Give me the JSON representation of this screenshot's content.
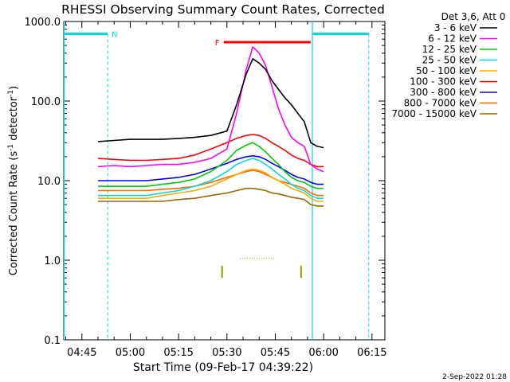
{
  "chart_data": {
    "type": "line",
    "title": "RHESSI Observing Summary Count Rates, Corrected",
    "xlabel": "Start Time (09-Feb-17 04:39:22)",
    "ylabel": "Corrected Count Rate (s⁻¹ detector⁻¹)",
    "ylabel_main": "Corrected Count Rate (s",
    "ylabel_sup1": "-1",
    "ylabel_mid": " detector",
    "ylabel_sup2": "-1",
    "ylabel_end": ")",
    "y_scale": "log",
    "ylim": [
      0.1,
      1000.0
    ],
    "xlim": [
      "04:39:22",
      "06:19:00"
    ],
    "y_ticks": [
      {
        "value": 0.1,
        "label": "0.1"
      },
      {
        "value": 1.0,
        "label": "1.0"
      },
      {
        "value": 10.0,
        "label": "10.0"
      },
      {
        "value": 100.0,
        "label": "100.0"
      },
      {
        "value": 1000.0,
        "label": "1000.0"
      }
    ],
    "x_ticks": [
      {
        "value": "04:45",
        "label": "04:45"
      },
      {
        "value": "05:00",
        "label": "05:00"
      },
      {
        "value": "05:15",
        "label": "05:15"
      },
      {
        "value": "05:30",
        "label": "05:30"
      },
      {
        "value": "05:45",
        "label": "05:45"
      },
      {
        "value": "06:00",
        "label": "06:00"
      },
      {
        "value": "06:15",
        "label": "06:15"
      }
    ],
    "legend_title": "Det 3,6, Att 0",
    "legend_position": "top-right",
    "series": [
      {
        "name": "3 - 6 keV",
        "color": "#000000",
        "points": [
          [
            "04:50",
            31
          ],
          [
            "04:55",
            32
          ],
          [
            "05:00",
            33
          ],
          [
            "05:05",
            33
          ],
          [
            "05:10",
            33
          ],
          [
            "05:15",
            34
          ],
          [
            "05:20",
            35
          ],
          [
            "05:25",
            37
          ],
          [
            "05:30",
            42
          ],
          [
            "05:33",
            90
          ],
          [
            "05:36",
            220
          ],
          [
            "05:38",
            340
          ],
          [
            "05:40",
            300
          ],
          [
            "05:42",
            250
          ],
          [
            "05:44",
            180
          ],
          [
            "05:46",
            140
          ],
          [
            "05:48",
            110
          ],
          [
            "05:50",
            90
          ],
          [
            "05:52",
            70
          ],
          [
            "05:54",
            55
          ],
          [
            "05:56",
            30
          ],
          [
            "05:58",
            27
          ],
          [
            "06:00",
            26
          ]
        ]
      },
      {
        "name": "6 - 12 keV",
        "color": "#ff00ff",
        "points": [
          [
            "04:50",
            15
          ],
          [
            "04:55",
            15.5
          ],
          [
            "05:00",
            15
          ],
          [
            "05:05",
            15.5
          ],
          [
            "05:10",
            16
          ],
          [
            "05:15",
            16
          ],
          [
            "05:20",
            17
          ],
          [
            "05:25",
            19
          ],
          [
            "05:30",
            25
          ],
          [
            "05:33",
            70
          ],
          [
            "05:36",
            250
          ],
          [
            "05:38",
            480
          ],
          [
            "05:40",
            400
          ],
          [
            "05:42",
            280
          ],
          [
            "05:44",
            150
          ],
          [
            "05:46",
            80
          ],
          [
            "05:48",
            50
          ],
          [
            "05:50",
            35
          ],
          [
            "05:52",
            30
          ],
          [
            "05:54",
            27
          ],
          [
            "05:56",
            16
          ],
          [
            "05:58",
            14
          ],
          [
            "06:00",
            13
          ]
        ]
      },
      {
        "name": "12 - 25 keV",
        "color": "#00cc00",
        "points": [
          [
            "04:50",
            8.5
          ],
          [
            "04:55",
            8.5
          ],
          [
            "05:00",
            8.5
          ],
          [
            "05:05",
            8.5
          ],
          [
            "05:10",
            9
          ],
          [
            "05:15",
            9.5
          ],
          [
            "05:20",
            10.5
          ],
          [
            "05:25",
            13
          ],
          [
            "05:30",
            18
          ],
          [
            "05:33",
            24
          ],
          [
            "05:36",
            28
          ],
          [
            "05:38",
            30
          ],
          [
            "05:40",
            27
          ],
          [
            "05:42",
            23
          ],
          [
            "05:44",
            19
          ],
          [
            "05:46",
            16
          ],
          [
            "05:48",
            13
          ],
          [
            "05:50",
            11
          ],
          [
            "05:52",
            10
          ],
          [
            "05:54",
            9.5
          ],
          [
            "05:56",
            8.5
          ],
          [
            "05:58",
            8
          ],
          [
            "06:00",
            8
          ]
        ]
      },
      {
        "name": "25 - 50 keV",
        "color": "#00dddd",
        "points": [
          [
            "04:50",
            6.5
          ],
          [
            "04:55",
            6.5
          ],
          [
            "05:00",
            6.5
          ],
          [
            "05:05",
            6.5
          ],
          [
            "05:10",
            7
          ],
          [
            "05:15",
            7.5
          ],
          [
            "05:20",
            8.5
          ],
          [
            "05:25",
            10
          ],
          [
            "05:30",
            13
          ],
          [
            "05:33",
            16
          ],
          [
            "05:36",
            18
          ],
          [
            "05:38",
            19
          ],
          [
            "05:40",
            18
          ],
          [
            "05:42",
            16
          ],
          [
            "05:44",
            14
          ],
          [
            "05:46",
            12
          ],
          [
            "05:48",
            10.5
          ],
          [
            "05:50",
            9
          ],
          [
            "05:52",
            8
          ],
          [
            "05:54",
            7.5
          ],
          [
            "05:56",
            6.5
          ],
          [
            "05:58",
            6
          ],
          [
            "06:00",
            6
          ]
        ]
      },
      {
        "name": "50 - 100 keV",
        "color": "#ffaa00",
        "points": [
          [
            "04:50",
            6
          ],
          [
            "04:55",
            6
          ],
          [
            "05:00",
            6
          ],
          [
            "05:05",
            6
          ],
          [
            "05:10",
            6.5
          ],
          [
            "05:15",
            7
          ],
          [
            "05:20",
            7.5
          ],
          [
            "05:25",
            8.5
          ],
          [
            "05:30",
            10.5
          ],
          [
            "05:33",
            12
          ],
          [
            "05:36",
            13.5
          ],
          [
            "05:38",
            14
          ],
          [
            "05:40",
            13.5
          ],
          [
            "05:42",
            12.5
          ],
          [
            "05:44",
            11
          ],
          [
            "05:46",
            10
          ],
          [
            "05:48",
            9
          ],
          [
            "05:50",
            8
          ],
          [
            "05:52",
            7.5
          ],
          [
            "05:54",
            7
          ],
          [
            "05:56",
            6
          ],
          [
            "05:58",
            5.5
          ],
          [
            "06:00",
            5.5
          ]
        ]
      },
      {
        "name": "100 - 300 keV",
        "color": "#ff0000",
        "points": [
          [
            "04:50",
            19
          ],
          [
            "04:55",
            18.5
          ],
          [
            "05:00",
            18
          ],
          [
            "05:05",
            18
          ],
          [
            "05:10",
            18.5
          ],
          [
            "05:15",
            19
          ],
          [
            "05:20",
            21
          ],
          [
            "05:25",
            25
          ],
          [
            "05:30",
            30
          ],
          [
            "05:33",
            34
          ],
          [
            "05:36",
            37
          ],
          [
            "05:38",
            38
          ],
          [
            "05:40",
            37
          ],
          [
            "05:42",
            34
          ],
          [
            "05:44",
            30
          ],
          [
            "05:46",
            27
          ],
          [
            "05:48",
            24
          ],
          [
            "05:50",
            21
          ],
          [
            "05:52",
            19
          ],
          [
            "05:54",
            18
          ],
          [
            "05:56",
            16
          ],
          [
            "05:58",
            15
          ],
          [
            "06:00",
            15
          ]
        ]
      },
      {
        "name": "300 - 800 keV",
        "color": "#0000ff",
        "points": [
          [
            "04:50",
            10
          ],
          [
            "04:55",
            10
          ],
          [
            "05:00",
            10
          ],
          [
            "05:05",
            10
          ],
          [
            "05:10",
            10.5
          ],
          [
            "05:15",
            11
          ],
          [
            "05:20",
            12
          ],
          [
            "05:25",
            14
          ],
          [
            "05:30",
            16.5
          ],
          [
            "05:33",
            18.5
          ],
          [
            "05:36",
            20
          ],
          [
            "05:38",
            20.5
          ],
          [
            "05:40",
            20
          ],
          [
            "05:42",
            18.5
          ],
          [
            "05:44",
            16.5
          ],
          [
            "05:46",
            15
          ],
          [
            "05:48",
            13.5
          ],
          [
            "05:50",
            12
          ],
          [
            "05:52",
            11
          ],
          [
            "05:54",
            10.5
          ],
          [
            "05:56",
            9.5
          ],
          [
            "05:58",
            9
          ],
          [
            "06:00",
            9
          ]
        ]
      },
      {
        "name": "800 - 7000 keV",
        "color": "#ff6600",
        "points": [
          [
            "04:50",
            7.5
          ],
          [
            "04:55",
            7.5
          ],
          [
            "05:00",
            7.5
          ],
          [
            "05:05",
            7.5
          ],
          [
            "05:10",
            7.8
          ],
          [
            "05:15",
            8
          ],
          [
            "05:20",
            8.5
          ],
          [
            "05:25",
            9.5
          ],
          [
            "05:30",
            11
          ],
          [
            "05:33",
            12
          ],
          [
            "05:36",
            13
          ],
          [
            "05:38",
            13.5
          ],
          [
            "05:40",
            13
          ],
          [
            "05:42",
            12
          ],
          [
            "05:44",
            11
          ],
          [
            "05:46",
            10
          ],
          [
            "05:48",
            9.5
          ],
          [
            "05:50",
            9
          ],
          [
            "05:52",
            8.5
          ],
          [
            "05:54",
            8
          ],
          [
            "05:56",
            7
          ],
          [
            "05:58",
            6.5
          ],
          [
            "06:00",
            6.5
          ]
        ]
      },
      {
        "name": "7000 - 15000 keV",
        "color": "#996600",
        "points": [
          [
            "04:50",
            5.5
          ],
          [
            "04:55",
            5.5
          ],
          [
            "05:00",
            5.5
          ],
          [
            "05:05",
            5.5
          ],
          [
            "05:10",
            5.5
          ],
          [
            "05:15",
            5.8
          ],
          [
            "05:20",
            6
          ],
          [
            "05:25",
            6.5
          ],
          [
            "05:30",
            7
          ],
          [
            "05:33",
            7.5
          ],
          [
            "05:36",
            8
          ],
          [
            "05:38",
            8
          ],
          [
            "05:40",
            7.8
          ],
          [
            "05:42",
            7.5
          ],
          [
            "05:44",
            7
          ],
          [
            "05:46",
            6.8
          ],
          [
            "05:48",
            6.5
          ],
          [
            "05:50",
            6.2
          ],
          [
            "05:52",
            6
          ],
          [
            "05:54",
            5.8
          ],
          [
            "05:56",
            5
          ],
          [
            "05:58",
            4.8
          ],
          [
            "06:00",
            4.8
          ]
        ]
      }
    ],
    "annotations": {
      "night_marker": {
        "label": "N",
        "color": "#00dddd",
        "bars": [
          [
            "04:39:22",
            "04:53:00"
          ],
          [
            "05:56:30",
            "06:14:00"
          ]
        ],
        "y": 700
      },
      "night_edges": {
        "color": "#00dddd",
        "dashed_times": [
          "04:53:00",
          "06:14:00"
        ],
        "solid_times": [
          "04:39:30",
          "05:56:30"
        ]
      },
      "flare_marker": {
        "label": "F",
        "color": "#ff0000",
        "start": "05:29:00",
        "end": "05:56:00",
        "y": 550
      },
      "olive_ticks": {
        "color": "#999900",
        "times": [
          "05:28:30",
          "05:53:00"
        ],
        "y_range": [
          0.6,
          0.85
        ]
      },
      "dotted_segment": {
        "color": "#999900",
        "start": "05:34:00",
        "end": "05:45:00",
        "y": 1.05
      }
    },
    "footer_date": "2-Sep-2022 01:28"
  }
}
